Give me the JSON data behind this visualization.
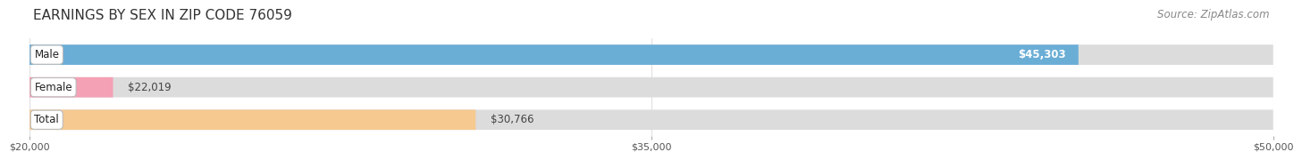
{
  "title": "EARNINGS BY SEX IN ZIP CODE 76059",
  "source": "Source: ZipAtlas.com",
  "categories": [
    "Male",
    "Female",
    "Total"
  ],
  "values": [
    45303,
    22019,
    30766
  ],
  "bar_colors": [
    "#6aaed6",
    "#f4a0b5",
    "#f5c990"
  ],
  "bar_bg_color": "#dcdcdc",
  "value_labels": [
    "$45,303",
    "$22,019",
    "$30,766"
  ],
  "xmin": 20000,
  "xmax": 50000,
  "xticks": [
    20000,
    35000,
    50000
  ],
  "xtick_labels": [
    "$20,000",
    "$35,000",
    "$50,000"
  ],
  "title_fontsize": 11,
  "source_fontsize": 8.5,
  "label_fontsize": 8.5,
  "value_fontsize": 8.5,
  "background_color": "#ffffff",
  "bar_height": 0.62,
  "bar_edge_color": "#cccccc"
}
